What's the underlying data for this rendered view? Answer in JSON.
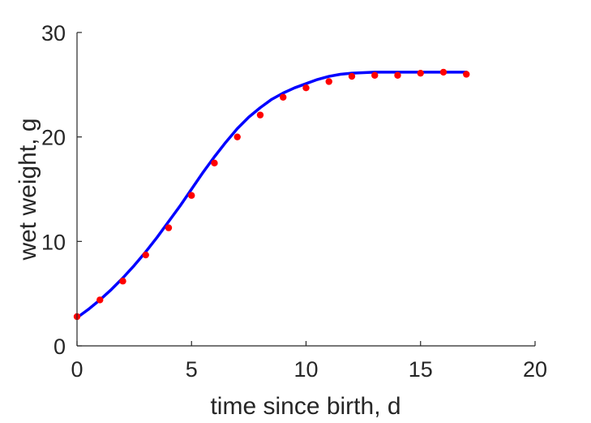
{
  "chart_data": {
    "type": "line",
    "xlabel": "time since birth, d",
    "ylabel": "wet weight, g",
    "xlim": [
      0,
      20
    ],
    "ylim": [
      0,
      30
    ],
    "xticks": [
      "0",
      "5",
      "10",
      "15",
      "20"
    ],
    "yticks": [
      "0",
      "10",
      "20",
      "30"
    ],
    "grid": false,
    "legend": "none",
    "series": [
      {
        "kind": "scatter",
        "color": "#ff0000",
        "x": [
          0,
          1,
          2,
          3,
          4,
          5,
          6,
          7,
          8,
          9,
          10,
          11,
          12,
          13,
          14,
          15,
          16,
          17
        ],
        "y": [
          2.8,
          4.4,
          6.2,
          8.7,
          11.3,
          14.4,
          17.5,
          20.0,
          22.1,
          23.8,
          24.7,
          25.3,
          25.8,
          25.9,
          25.9,
          26.1,
          26.2,
          26.0
        ]
      },
      {
        "kind": "line",
        "color": "#0000ff",
        "x": [
          0,
          0.5,
          1,
          1.5,
          2,
          2.5,
          3,
          3.5,
          4,
          4.5,
          5,
          5.5,
          6,
          6.5,
          7,
          7.5,
          8,
          8.5,
          9,
          9.5,
          10,
          10.5,
          11,
          11.5,
          12,
          12.5,
          13,
          13.5,
          14,
          14.5,
          15,
          15.5,
          16,
          16.5,
          17
        ],
        "y": [
          2.7,
          3.5,
          4.4,
          5.4,
          6.5,
          7.7,
          9.0,
          10.4,
          11.9,
          13.4,
          15.0,
          16.6,
          18.1,
          19.5,
          20.8,
          21.9,
          22.8,
          23.6,
          24.2,
          24.7,
          25.1,
          25.5,
          25.8,
          26.0,
          26.1,
          26.15,
          26.2,
          26.2,
          26.2,
          26.2,
          26.2,
          26.2,
          26.2,
          26.2,
          26.2
        ]
      }
    ]
  }
}
